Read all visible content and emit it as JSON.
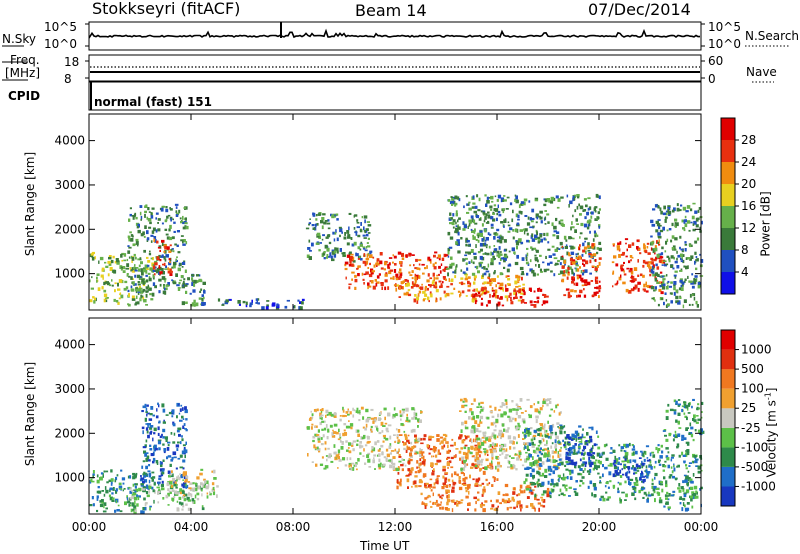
{
  "header": {
    "station": "Stokkseyri (fitACF)",
    "beam": "Beam 14",
    "date": "07/Dec/2014"
  },
  "top_panels": {
    "nsky_label": "N.Sky",
    "nsky_ticks": [
      "10^5",
      "10^0"
    ],
    "nsearch_label": "N.Search",
    "nsearch_ticks": [
      "10^5",
      "10^0"
    ],
    "freq_label": "Freq.",
    "freq_unit": "[MHz]",
    "freq_ticks": [
      "18",
      "8"
    ],
    "nave_label": "Nave",
    "nave_ticks": [
      "60",
      "0"
    ],
    "cpid_label": "CPID",
    "cpid_value": "normal (fast) 151"
  },
  "chart_data": [
    {
      "type": "heatmap",
      "name": "power",
      "ylabel": "Slant Range [km]",
      "xlabel": "",
      "xlim": [
        0,
        24
      ],
      "ylim": [
        180,
        4600
      ],
      "y_ticks": [
        "1000",
        "2000",
        "3000",
        "4000"
      ],
      "colorbar_label": "Power [dB]",
      "colorbar_ticks": [
        "4",
        "8",
        "12",
        "16",
        "20",
        "24",
        "28"
      ],
      "colorbar_colors": [
        "#1010e8",
        "#2050c0",
        "#3a7a3a",
        "#66b04a",
        "#e8d020",
        "#f08c10",
        "#e83010",
        "#e00000"
      ],
      "blobs": [
        {
          "t0": 0.0,
          "t1": 2.5,
          "r0": 300,
          "r1": 1500,
          "level": 3
        },
        {
          "t0": 1.5,
          "t1": 3.8,
          "r0": 600,
          "r1": 2600,
          "level": 2
        },
        {
          "t0": 2.5,
          "t1": 3.2,
          "r0": 1000,
          "r1": 1800,
          "level": 6
        },
        {
          "t0": 3.5,
          "t1": 4.5,
          "r0": 300,
          "r1": 1000,
          "level": 2
        },
        {
          "t0": 5.0,
          "t1": 8.5,
          "r0": 250,
          "r1": 450,
          "level": 1
        },
        {
          "t0": 8.5,
          "t1": 11.0,
          "r0": 1300,
          "r1": 2400,
          "level": 2
        },
        {
          "t0": 10.0,
          "t1": 14.0,
          "r0": 700,
          "r1": 1500,
          "level": 6
        },
        {
          "t0": 12.0,
          "t1": 17.0,
          "r0": 400,
          "r1": 1000,
          "level": 5
        },
        {
          "t0": 15.0,
          "t1": 18.0,
          "r0": 300,
          "r1": 700,
          "level": 7
        },
        {
          "t0": 14.0,
          "t1": 20.0,
          "r0": 1000,
          "r1": 2800,
          "level": 2
        },
        {
          "t0": 18.5,
          "t1": 20.0,
          "r0": 500,
          "r1": 1700,
          "level": 6
        },
        {
          "t0": 20.5,
          "t1": 22.5,
          "r0": 600,
          "r1": 1800,
          "level": 6
        },
        {
          "t0": 22.0,
          "t1": 24.0,
          "r0": 300,
          "r1": 2600,
          "level": 2
        }
      ]
    },
    {
      "type": "heatmap",
      "name": "velocity",
      "ylabel": "Slant Range [km]",
      "xlabel": "Time UT",
      "xlim": [
        0,
        24
      ],
      "ylim": [
        180,
        4600
      ],
      "x_ticks": [
        "00:00",
        "04:00",
        "08:00",
        "12:00",
        "16:00",
        "20:00",
        "00:00"
      ],
      "y_ticks": [
        "1000",
        "2000",
        "3000",
        "4000"
      ],
      "colorbar_label": "Velocity [m s",
      "colorbar_label_sup": "-1",
      "colorbar_label_end": "]",
      "colorbar_ticks": [
        "1000",
        "500",
        "100",
        "25",
        "-25",
        "-100",
        "-500",
        "-1000"
      ],
      "colorbar_colors": [
        "#1838c0",
        "#1f6ec8",
        "#2e8a4a",
        "#5cc048",
        "#c8c8c0",
        "#f0a030",
        "#f07820",
        "#e03010",
        "#e00000"
      ],
      "blobs": [
        {
          "t0": 0.0,
          "t1": 2.5,
          "r0": 250,
          "r1": 1200,
          "level": 2
        },
        {
          "t0": 2.0,
          "t1": 3.8,
          "r0": 800,
          "r1": 2700,
          "level": 1
        },
        {
          "t0": 1.5,
          "t1": 4.5,
          "r0": 300,
          "r1": 900,
          "level": 3
        },
        {
          "t0": 3.0,
          "t1": 5.0,
          "r0": 600,
          "r1": 1200,
          "level": 4
        },
        {
          "t0": 8.5,
          "t1": 13.0,
          "r0": 1200,
          "r1": 2600,
          "level": 4
        },
        {
          "t0": 12.0,
          "t1": 16.0,
          "r0": 800,
          "r1": 2000,
          "level": 6
        },
        {
          "t0": 13.0,
          "t1": 18.0,
          "r0": 300,
          "r1": 900,
          "level": 6
        },
        {
          "t0": 14.5,
          "t1": 18.5,
          "r0": 1200,
          "r1": 2800,
          "level": 4
        },
        {
          "t0": 17.0,
          "t1": 20.0,
          "r0": 600,
          "r1": 2200,
          "level": 2
        },
        {
          "t0": 18.5,
          "t1": 19.8,
          "r0": 1300,
          "r1": 2000,
          "level": 0
        },
        {
          "t0": 20.0,
          "t1": 22.5,
          "r0": 500,
          "r1": 1800,
          "level": 2
        },
        {
          "t0": 20.5,
          "t1": 22.0,
          "r0": 900,
          "r1": 1500,
          "level": 0
        },
        {
          "t0": 22.5,
          "t1": 24.0,
          "r0": 300,
          "r1": 2800,
          "level": 2
        }
      ]
    }
  ]
}
